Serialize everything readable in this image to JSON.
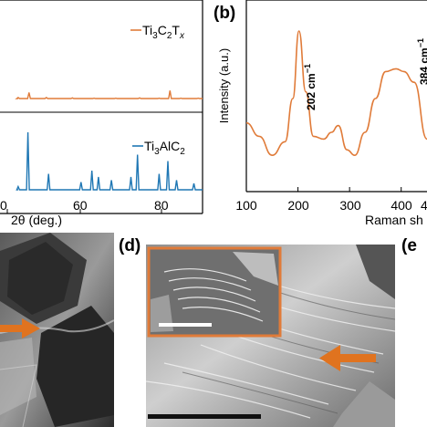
{
  "panel_a": {
    "legend_top": "Ti3C2Tx",
    "legend_bottom": "Ti3AlC2",
    "xlabel": "2θ (deg.)",
    "xticks": [
      "0",
      "60",
      "80"
    ],
    "colors": {
      "top": "#e07b39",
      "bottom": "#1f77b4"
    }
  },
  "panel_b": {
    "label": "(b)",
    "ylabel": "Intensity (a.u.)",
    "xlabel_visible": "Raman sh",
    "peak1": "202 cm⁻¹",
    "peak2": "384 cm⁻¹",
    "xticks": [
      "100",
      "200",
      "300",
      "400",
      "45"
    ],
    "color": "#e07b39"
  },
  "panel_d": {
    "label": "(d)",
    "inset_border_color": "#e07b39"
  },
  "panel_e": {
    "label": "(e"
  },
  "arrow_color": "#e0731f",
  "chart_data": [
    {
      "type": "line",
      "panel": "a",
      "xlabel": "2θ (deg.)",
      "xlim": [
        0,
        90
      ],
      "series": [
        {
          "name": "Ti3C2Tx",
          "x": [
            5,
            10,
            18,
            30,
            40,
            50,
            61,
            70,
            75,
            80,
            88
          ],
          "y": [
            0.05,
            0.3,
            0.05,
            0.03,
            0.02,
            0.02,
            0.03,
            0.02,
            0.4,
            0.02,
            0.02
          ]
        },
        {
          "name": "Ti3AlC2",
          "x": [
            5,
            9.5,
            19,
            34,
            39,
            42,
            48,
            57,
            60,
            70,
            74,
            78,
            86
          ],
          "y": [
            0.05,
            0.9,
            0.25,
            0.12,
            0.3,
            0.2,
            0.15,
            0.2,
            0.55,
            0.25,
            0.45,
            0.15,
            0.1
          ]
        }
      ]
    },
    {
      "type": "line",
      "panel": "b",
      "ylabel": "Intensity (a.u.)",
      "xlim": [
        100,
        450
      ],
      "series": [
        {
          "name": "",
          "x": [
            100,
            125,
            150,
            175,
            190,
            202,
            215,
            230,
            250,
            265,
            278,
            295,
            310,
            330,
            350,
            370,
            390,
            405,
            425,
            450
          ],
          "y": [
            0.32,
            0.22,
            0.08,
            0.18,
            0.5,
            1.0,
            0.55,
            0.22,
            0.2,
            0.25,
            0.3,
            0.12,
            0.08,
            0.25,
            0.5,
            0.7,
            0.72,
            0.7,
            0.62,
            0.2
          ]
        }
      ]
    }
  ]
}
